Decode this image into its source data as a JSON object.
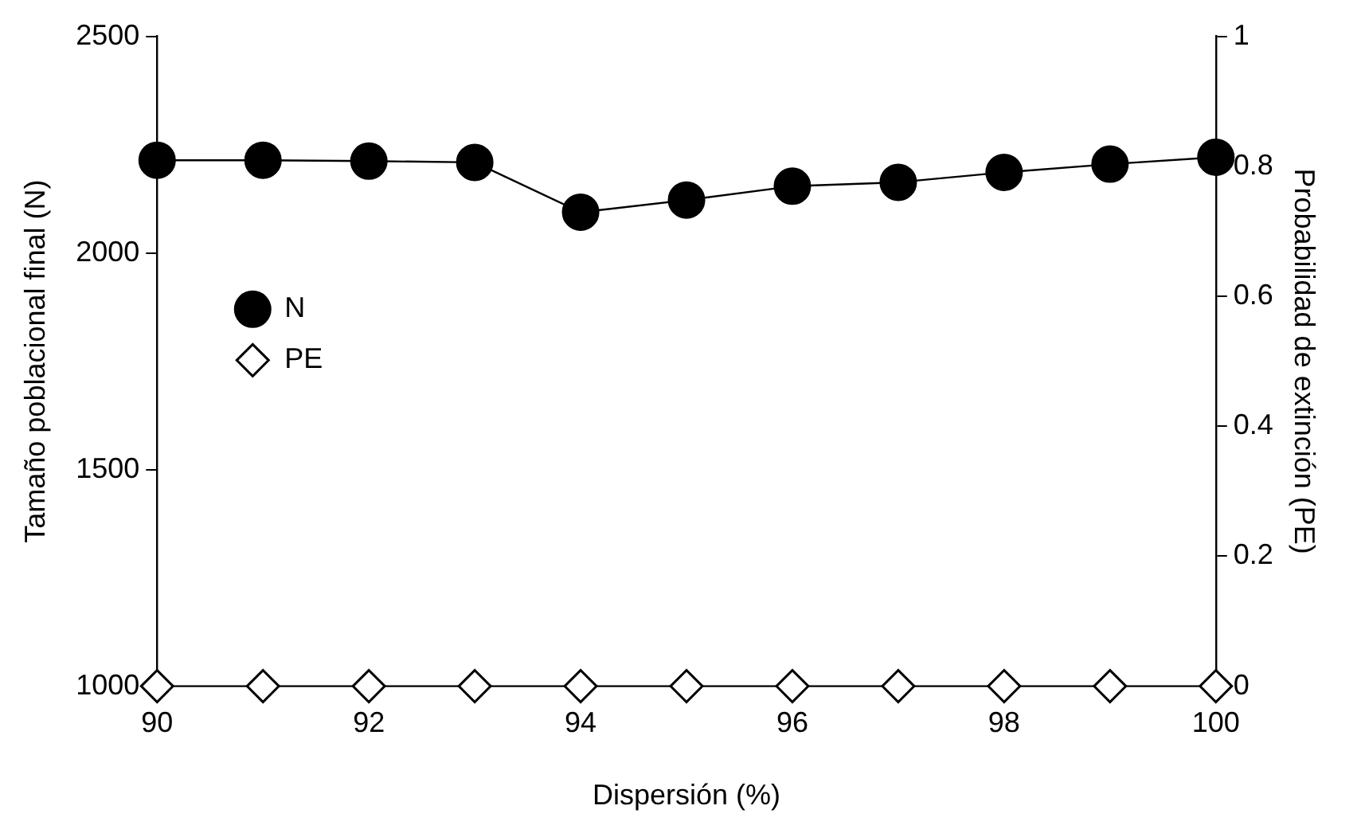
{
  "chart_data": {
    "type": "line",
    "xlabel": "Dispersión (%)",
    "ylabel": "Tamaño poblacional final (N)",
    "y2label": "Probabilidad de extinción (PE)",
    "x": [
      90,
      91,
      92,
      93,
      94,
      95,
      96,
      97,
      98,
      99,
      100
    ],
    "series": [
      {
        "name": "N",
        "color": "#000000",
        "marker": "circle",
        "values": [
          2214,
          2214,
          2212,
          2209,
          2094,
          2122,
          2154,
          2163,
          2186,
          2205,
          2221
        ]
      },
      {
        "name": "PE",
        "color": "#000000",
        "marker": "diamond",
        "axis": "y2",
        "values": [
          0,
          0,
          0,
          0,
          0,
          0,
          0,
          0,
          0,
          0,
          0
        ]
      }
    ],
    "xlim": [
      90,
      100
    ],
    "xticks": [
      90,
      92,
      94,
      96,
      98,
      100
    ],
    "ylim": [
      1000,
      2500
    ],
    "yticks": [
      1000,
      1500,
      2000,
      2500
    ],
    "y2lim": [
      0,
      1
    ],
    "y2ticks": [
      0,
      0.2,
      0.4,
      0.6,
      0.8,
      1
    ],
    "grid": false,
    "legend": "left",
    "line_style": "solid"
  }
}
